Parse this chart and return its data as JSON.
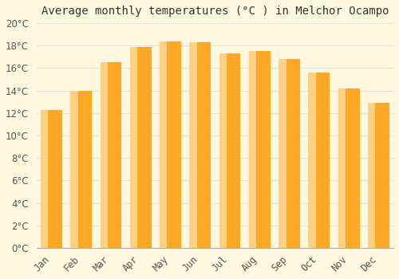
{
  "title": "Average monthly temperatures (°C ) in Melchor Ocampo",
  "months": [
    "Jan",
    "Feb",
    "Mar",
    "Apr",
    "May",
    "Jun",
    "Jul",
    "Aug",
    "Sep",
    "Oct",
    "Nov",
    "Dec"
  ],
  "temperatures": [
    12.3,
    14.0,
    16.5,
    17.9,
    18.4,
    18.3,
    17.3,
    17.5,
    16.8,
    15.6,
    14.2,
    12.9
  ],
  "bar_color_main": "#FFA726",
  "bar_color_light": "#FFD180",
  "background_color": "#FFF8E1",
  "plot_bg_color": "#FFF8E1",
  "grid_color": "#E0E0E0",
  "tick_label_color": "#555555",
  "title_color": "#333333",
  "ylim": [
    0,
    20
  ],
  "ytick_step": 2,
  "title_fontsize": 10,
  "tick_fontsize": 8.5
}
